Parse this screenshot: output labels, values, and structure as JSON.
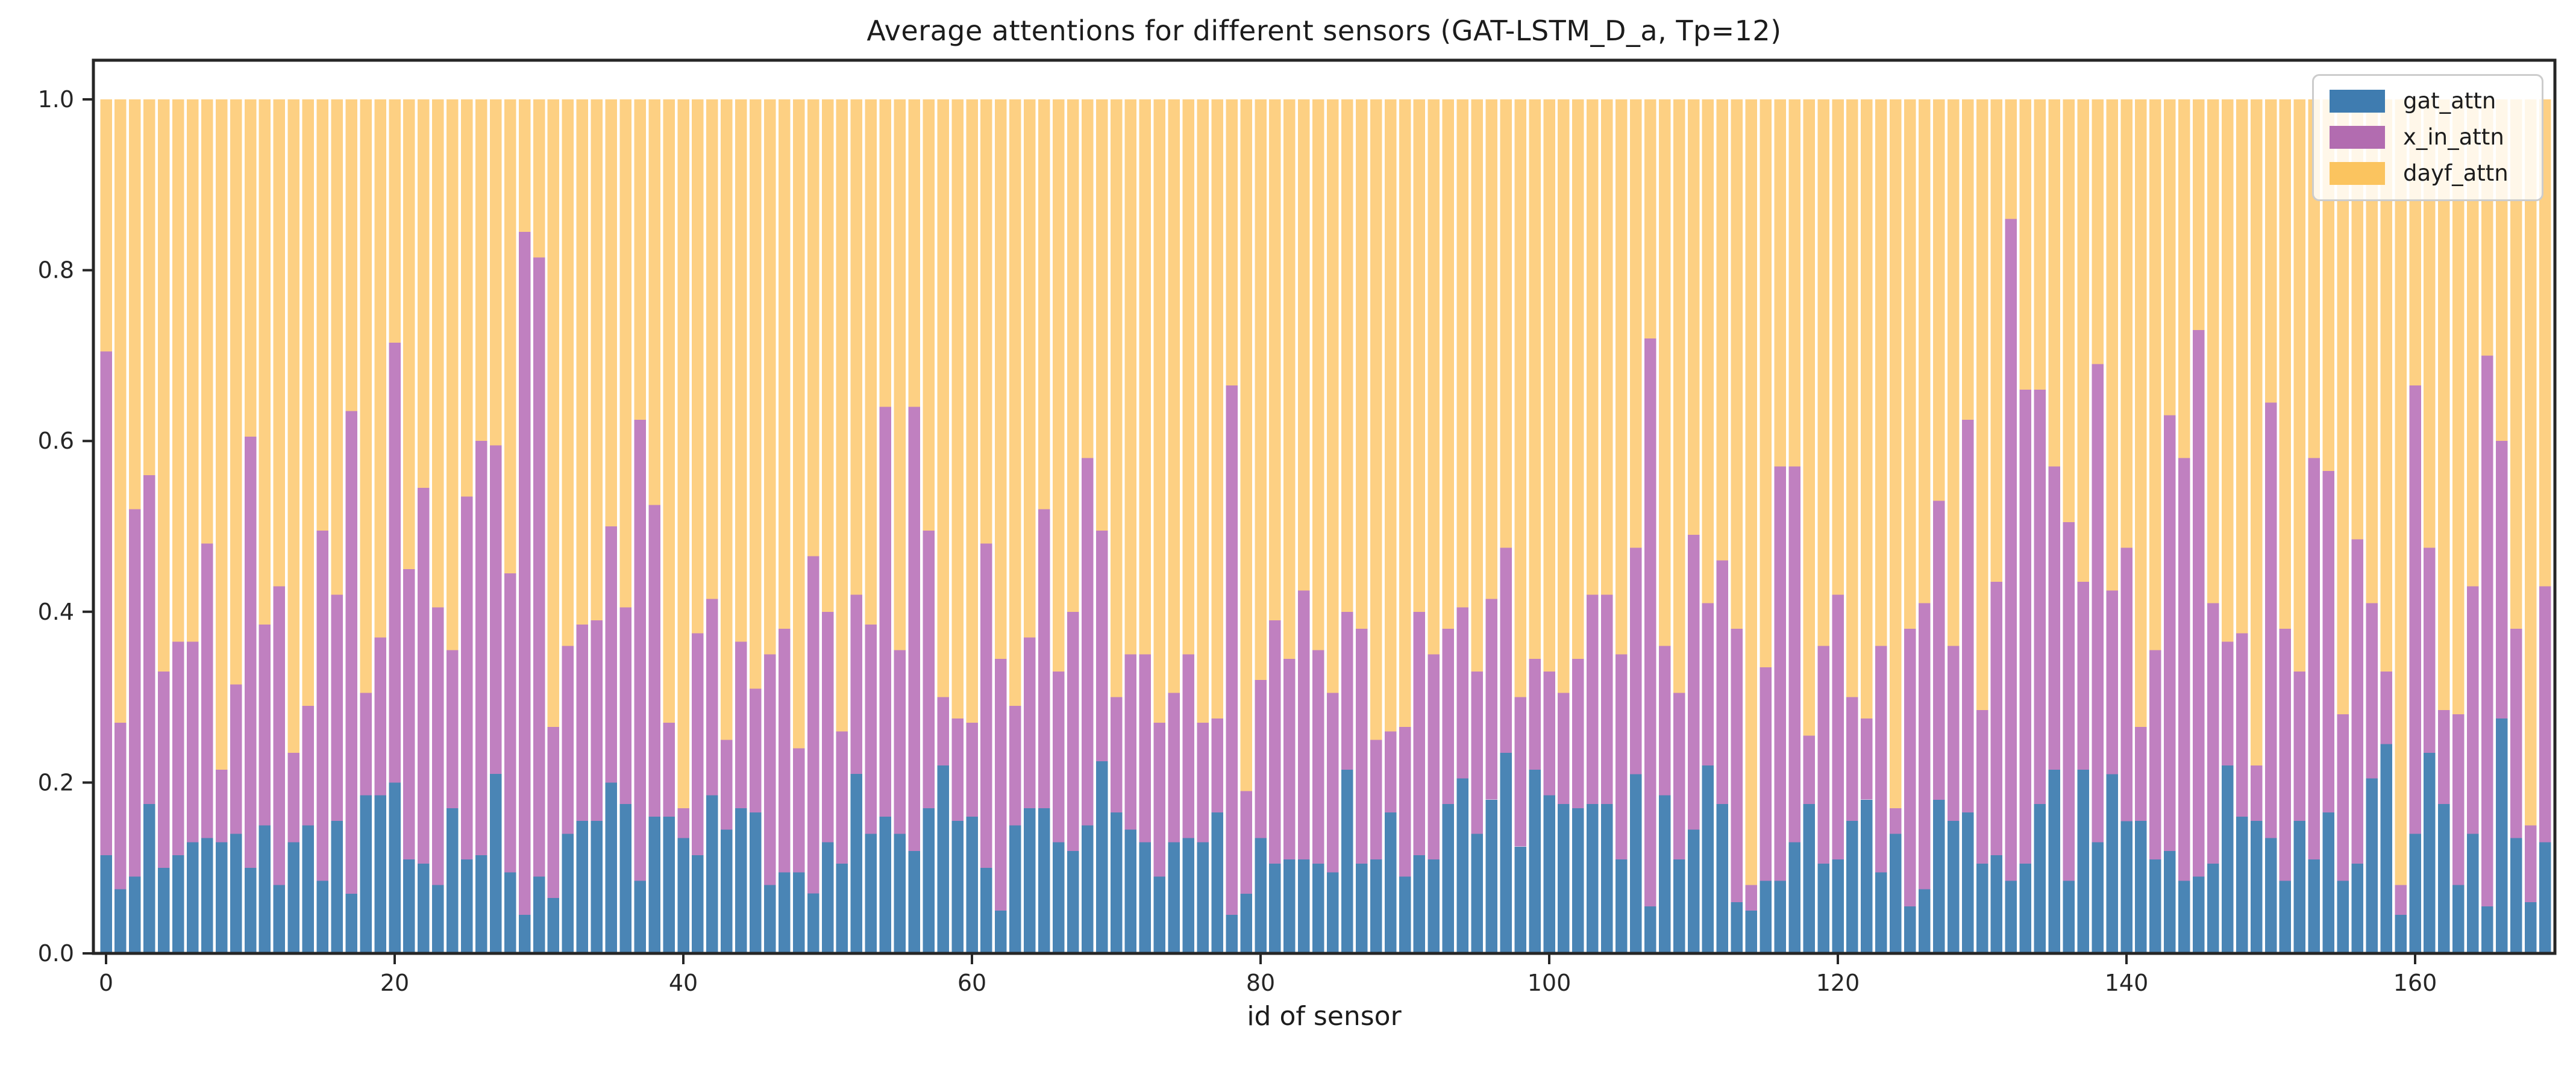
{
  "chart_data": {
    "type": "bar",
    "stacked": true,
    "title": "Average attentions for different sensors (GAT-LSTM_D_a, Tp=12)",
    "xlabel": "id of sensor",
    "ylabel": "",
    "n_bars": 170,
    "x_ticks": [
      0,
      20,
      40,
      60,
      80,
      100,
      120,
      140,
      160
    ],
    "y_ticks": [
      "0.0",
      "0.2",
      "0.4",
      "0.6",
      "0.8",
      "1.0"
    ],
    "ylim": [
      0,
      1.05
    ],
    "grid": false,
    "legend_position": "upper right",
    "axis_color": "#262626",
    "series": [
      {
        "name": "gat_attn",
        "color": "#4a85b5",
        "legend_color": "#3f7cb0",
        "values": [
          0.115,
          0.075,
          0.09,
          0.175,
          0.1,
          0.115,
          0.13,
          0.135,
          0.13,
          0.14,
          0.1,
          0.15,
          0.08,
          0.13,
          0.15,
          0.085,
          0.155,
          0.07,
          0.185,
          0.185,
          0.2,
          0.11,
          0.105,
          0.08,
          0.17,
          0.11,
          0.115,
          0.21,
          0.095,
          0.045,
          0.09,
          0.065,
          0.14,
          0.155,
          0.155,
          0.2,
          0.175,
          0.085,
          0.16,
          0.16,
          0.135,
          0.115,
          0.185,
          0.145,
          0.17,
          0.165,
          0.08,
          0.095,
          0.095,
          0.07,
          0.13,
          0.105,
          0.21,
          0.14,
          0.16,
          0.14,
          0.12,
          0.17,
          0.22,
          0.155,
          0.16,
          0.1,
          0.05,
          0.15,
          0.17,
          0.17,
          0.13,
          0.12,
          0.15,
          0.225,
          0.165,
          0.145,
          0.13,
          0.09,
          0.13,
          0.135,
          0.13,
          0.165,
          0.045,
          0.07,
          0.135,
          0.105,
          0.11,
          0.11,
          0.105,
          0.095,
          0.215,
          0.105,
          0.11,
          0.165,
          0.09,
          0.115,
          0.11,
          0.175,
          0.205,
          0.14,
          0.18,
          0.235,
          0.125,
          0.215,
          0.185,
          0.175,
          0.17,
          0.175,
          0.175,
          0.11,
          0.21,
          0.055,
          0.185,
          0.11,
          0.145,
          0.22,
          0.175,
          0.06,
          0.05,
          0.085,
          0.085,
          0.13,
          0.175,
          0.105,
          0.11,
          0.155,
          0.18,
          0.095,
          0.14,
          0.055,
          0.075,
          0.18,
          0.155,
          0.165,
          0.105,
          0.115,
          0.085,
          0.105,
          0.175,
          0.215,
          0.085,
          0.215,
          0.13,
          0.21,
          0.155,
          0.155,
          0.11,
          0.12,
          0.085,
          0.09,
          0.105,
          0.22,
          0.16,
          0.155,
          0.135,
          0.085,
          0.155,
          0.11,
          0.165,
          0.085,
          0.105,
          0.205,
          0.245,
          0.045,
          0.14,
          0.235,
          0.175,
          0.08,
          0.14,
          0.055,
          0.275,
          0.135,
          0.06,
          0.13
        ]
      },
      {
        "name": "x_in_attn",
        "color": "#c080c0",
        "legend_color": "#b26cb0",
        "values": [
          0.59,
          0.195,
          0.43,
          0.385,
          0.23,
          0.25,
          0.235,
          0.345,
          0.085,
          0.175,
          0.505,
          0.235,
          0.35,
          0.105,
          0.14,
          0.41,
          0.265,
          0.565,
          0.12,
          0.185,
          0.515,
          0.34,
          0.44,
          0.325,
          0.185,
          0.425,
          0.485,
          0.385,
          0.35,
          0.8,
          0.725,
          0.2,
          0.22,
          0.23,
          0.235,
          0.3,
          0.23,
          0.54,
          0.365,
          0.11,
          0.035,
          0.26,
          0.23,
          0.105,
          0.195,
          0.145,
          0.27,
          0.285,
          0.145,
          0.395,
          0.27,
          0.155,
          0.21,
          0.245,
          0.48,
          0.215,
          0.52,
          0.325,
          0.08,
          0.12,
          0.11,
          0.38,
          0.295,
          0.14,
          0.2,
          0.35,
          0.2,
          0.28,
          0.43,
          0.27,
          0.135,
          0.205,
          0.22,
          0.18,
          0.175,
          0.215,
          0.14,
          0.11,
          0.62,
          0.12,
          0.185,
          0.285,
          0.235,
          0.315,
          0.25,
          0.21,
          0.185,
          0.275,
          0.14,
          0.095,
          0.175,
          0.285,
          0.24,
          0.205,
          0.2,
          0.19,
          0.235,
          0.24,
          0.175,
          0.13,
          0.145,
          0.13,
          0.175,
          0.245,
          0.245,
          0.24,
          0.265,
          0.665,
          0.175,
          0.195,
          0.345,
          0.19,
          0.285,
          0.32,
          0.03,
          0.25,
          0.485,
          0.44,
          0.08,
          0.255,
          0.31,
          0.145,
          0.095,
          0.265,
          0.03,
          0.325,
          0.335,
          0.35,
          0.205,
          0.46,
          0.18,
          0.32,
          0.775,
          0.555,
          0.485,
          0.355,
          0.42,
          0.22,
          0.56,
          0.215,
          0.32,
          0.11,
          0.245,
          0.51,
          0.495,
          0.64,
          0.305,
          0.145,
          0.215,
          0.065,
          0.51,
          0.295,
          0.175,
          0.47,
          0.4,
          0.195,
          0.38,
          0.205,
          0.085,
          0.035,
          0.525,
          0.24,
          0.11,
          0.2,
          0.29,
          0.645,
          0.325,
          0.245,
          0.09,
          0.3
        ]
      },
      {
        "name": "dayf_attn",
        "color": "#fdd083",
        "legend_color": "#fbc45f",
        "values": [
          0.295,
          0.73,
          0.48,
          0.44,
          0.67,
          0.635,
          0.635,
          0.52,
          0.785,
          0.685,
          0.395,
          0.615,
          0.57,
          0.765,
          0.71,
          0.505,
          0.58,
          0.365,
          0.695,
          0.63,
          0.285,
          0.55,
          0.455,
          0.595,
          0.645,
          0.465,
          0.4,
          0.405,
          0.555,
          0.155,
          0.185,
          0.735,
          0.64,
          0.615,
          0.61,
          0.5,
          0.595,
          0.375,
          0.475,
          0.73,
          0.83,
          0.625,
          0.585,
          0.75,
          0.635,
          0.69,
          0.65,
          0.62,
          0.76,
          0.535,
          0.6,
          0.74,
          0.58,
          0.615,
          0.36,
          0.645,
          0.36,
          0.505,
          0.7,
          0.725,
          0.73,
          0.52,
          0.655,
          0.71,
          0.63,
          0.48,
          0.67,
          0.6,
          0.42,
          0.505,
          0.7,
          0.65,
          0.65,
          0.73,
          0.695,
          0.65,
          0.73,
          0.725,
          0.335,
          0.81,
          0.68,
          0.61,
          0.655,
          0.575,
          0.645,
          0.695,
          0.6,
          0.62,
          0.75,
          0.74,
          0.735,
          0.6,
          0.65,
          0.62,
          0.595,
          0.67,
          0.585,
          0.525,
          0.7,
          0.655,
          0.67,
          0.695,
          0.655,
          0.58,
          0.58,
          0.65,
          0.525,
          0.28,
          0.64,
          0.695,
          0.51,
          0.59,
          0.54,
          0.62,
          0.92,
          0.665,
          0.43,
          0.43,
          0.745,
          0.64,
          0.58,
          0.7,
          0.725,
          0.64,
          0.83,
          0.62,
          0.59,
          0.47,
          0.64,
          0.375,
          0.715,
          0.565,
          0.14,
          0.34,
          0.34,
          0.43,
          0.495,
          0.565,
          0.31,
          0.575,
          0.525,
          0.735,
          0.645,
          0.37,
          0.42,
          0.27,
          0.59,
          0.635,
          0.625,
          0.78,
          0.355,
          0.62,
          0.67,
          0.42,
          0.435,
          0.72,
          0.515,
          0.59,
          0.67,
          0.92,
          0.335,
          0.525,
          0.715,
          0.72,
          0.57,
          0.3,
          0.4,
          0.62,
          0.85,
          0.57
        ]
      }
    ]
  }
}
